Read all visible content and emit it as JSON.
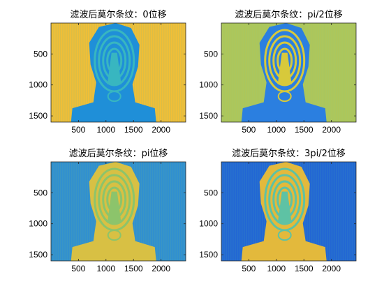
{
  "figure": {
    "description_colors": {
      "bright": "#f5be2e",
      "mid": "#2fa8c4",
      "dark": "#1f5fcf",
      "green": "#9bc45a"
    }
  },
  "chart_data": [
    {
      "type": "heatmap",
      "title": "滤波后莫尔条纹：0位移",
      "xlabel": "",
      "ylabel": "",
      "xlim": [
        1,
        2448
      ],
      "ylim": [
        1,
        1600
      ],
      "x_ticks": [
        500,
        1000,
        1500,
        2000
      ],
      "y_ticks": [
        500,
        1000,
        1500
      ],
      "x_tick_labels": [
        "500",
        "1000",
        "1500",
        "2000"
      ],
      "y_tick_labels": [
        "500",
        "1000",
        "1500"
      ],
      "background_color": "#f3bf35",
      "face_color": "#1f8fd8",
      "face_band_color": "#38b6c0",
      "phase_shift": "0"
    },
    {
      "type": "heatmap",
      "title": "滤波后莫尔条纹：pi/2位移",
      "xlabel": "",
      "ylabel": "",
      "xlim": [
        1,
        2448
      ],
      "ylim": [
        1,
        1600
      ],
      "x_ticks": [
        500,
        1000,
        1500,
        2000
      ],
      "y_ticks": [
        500,
        1000,
        1500
      ],
      "x_tick_labels": [
        "500",
        "1000",
        "1500",
        "2000"
      ],
      "y_tick_labels": [
        "500",
        "1000",
        "1500"
      ],
      "background_color": "#a9c75f",
      "face_color": "#2b7fe0",
      "face_band_color": "#d7c93b",
      "phase_shift": "pi/2"
    },
    {
      "type": "heatmap",
      "title": "滤波后莫尔条纹：pi位移",
      "xlabel": "",
      "ylabel": "",
      "xlim": [
        1,
        2448
      ],
      "ylim": [
        1,
        1600
      ],
      "x_ticks": [
        500,
        1000,
        1500,
        2000
      ],
      "y_ticks": [
        500,
        1000,
        1500
      ],
      "x_tick_labels": [
        "500",
        "1000",
        "1500",
        "2000"
      ],
      "y_tick_labels": [
        "500",
        "1000",
        "1500"
      ],
      "background_color": "#2f8fd2",
      "face_color": "#d8c044",
      "face_band_color": "#8cc46b",
      "phase_shift": "pi"
    },
    {
      "type": "heatmap",
      "title": "滤波后莫尔条纹：3pi/2位移",
      "xlabel": "",
      "ylabel": "",
      "xlim": [
        1,
        2448
      ],
      "ylim": [
        1,
        1600
      ],
      "x_ticks": [
        500,
        1000,
        1500,
        2000
      ],
      "y_ticks": [
        500,
        1000,
        1500
      ],
      "x_tick_labels": [
        "500",
        "1000",
        "1500",
        "2000"
      ],
      "y_tick_labels": [
        "500",
        "1000",
        "1500"
      ],
      "background_color": "#2266d4",
      "face_color": "#e3b93c",
      "face_band_color": "#5ec2a4",
      "phase_shift": "3pi/2"
    }
  ]
}
